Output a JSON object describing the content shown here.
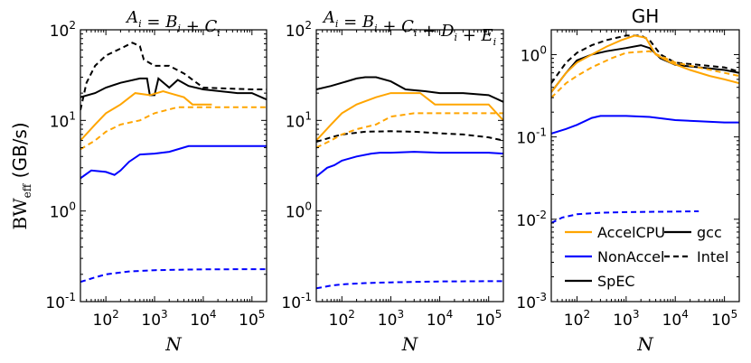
{
  "colors": {
    "accelcpu": "#FFA500",
    "nonaccel": "#0000FF",
    "spec": "#000000"
  },
  "figure": {
    "ylabel": "BW",
    "ylabel_sub": "eff",
    "ylabel_unit": " (GB/s)",
    "xlabel": "N"
  },
  "legend": {
    "items": [
      {
        "label": "AccelCPU",
        "color": "#FFA500",
        "dash": "solid"
      },
      {
        "label": "gcc",
        "color": "#000000",
        "dash": "solid"
      },
      {
        "label": "NonAccel",
        "color": "#0000FF",
        "dash": "solid"
      },
      {
        "label": "Intel",
        "color": "#000000",
        "dash": "dashed"
      },
      {
        "label": "SpEC",
        "color": "#000000",
        "dash": "solid"
      }
    ]
  },
  "chart_data": [
    {
      "type": "line",
      "title": "A_i = B_i + C_i",
      "title_parts": {
        "lhs": "A",
        "rhs": [
          "B",
          "C"
        ],
        "sub": "i"
      },
      "xscale": "log",
      "yscale": "log",
      "xlim": [
        30,
        200000
      ],
      "ylim": [
        0.1,
        100
      ],
      "xticks": [
        {
          "value": 100,
          "base": "10",
          "exp": "2"
        },
        {
          "value": 1000,
          "base": "10",
          "exp": "3"
        },
        {
          "value": 10000,
          "base": "10",
          "exp": "4"
        },
        {
          "value": 100000,
          "base": "10",
          "exp": "5"
        }
      ],
      "yticks": [
        {
          "value": 0.1,
          "base": "10",
          "exp": "-1"
        },
        {
          "value": 1,
          "base": "10",
          "exp": "0"
        },
        {
          "value": 10,
          "base": "10",
          "exp": "1"
        },
        {
          "value": 100,
          "base": "10",
          "exp": "2"
        }
      ],
      "xlabel": "N",
      "series": [
        {
          "name": "SpEC Intel",
          "color": "#000000",
          "dash": "dashed",
          "x": [
            30,
            40,
            60,
            100,
            200,
            350,
            500,
            600,
            1000,
            2000,
            4000,
            10000,
            100000,
            200000
          ],
          "y": [
            13,
            26,
            40,
            52,
            62,
            72,
            66,
            47,
            40,
            40,
            33,
            23,
            22,
            22
          ]
        },
        {
          "name": "SpEC gcc",
          "color": "#000000",
          "dash": "solid",
          "x": [
            30,
            60,
            100,
            200,
            500,
            700,
            800,
            1000,
            1200,
            2000,
            3000,
            5000,
            10000,
            50000,
            100000,
            200000
          ],
          "y": [
            18,
            20,
            23,
            26,
            29,
            29,
            19,
            19,
            29,
            23,
            28,
            24,
            22,
            20,
            20,
            17
          ]
        },
        {
          "name": "AccelCPU gcc",
          "color": "#FFA500",
          "dash": "solid",
          "x": [
            30,
            60,
            100,
            200,
            400,
            800,
            1500,
            2000,
            4000,
            6000,
            10000,
            15000
          ],
          "y": [
            6,
            9,
            12,
            15,
            20,
            19,
            21,
            20,
            18,
            15,
            15,
            15
          ]
        },
        {
          "name": "AccelCPU Intel",
          "color": "#FFA500",
          "dash": "dashed",
          "x": [
            30,
            60,
            100,
            200,
            500,
            1000,
            3000,
            10000,
            50000,
            100000,
            200000
          ],
          "y": [
            4.8,
            6,
            7.5,
            9,
            10,
            12,
            14,
            14,
            14,
            14,
            14
          ]
        },
        {
          "name": "NonAccel gcc",
          "color": "#0000FF",
          "dash": "solid",
          "x": [
            30,
            50,
            100,
            150,
            200,
            300,
            500,
            1000,
            2000,
            5000,
            10000,
            100000,
            200000
          ],
          "y": [
            2.3,
            2.8,
            2.7,
            2.5,
            2.8,
            3.5,
            4.2,
            4.3,
            4.5,
            5.2,
            5.2,
            5.2,
            5.2
          ]
        },
        {
          "name": "NonAccel Intel",
          "color": "#0000FF",
          "dash": "dashed",
          "x": [
            30,
            60,
            100,
            300,
            1000,
            3000,
            10000,
            100000,
            200000
          ],
          "y": [
            0.165,
            0.185,
            0.2,
            0.215,
            0.222,
            0.225,
            0.227,
            0.228,
            0.228
          ]
        }
      ]
    },
    {
      "type": "line",
      "title": "A_i = B_i + C_i + D_i + E_i",
      "title_parts": {
        "lhs": "A",
        "rhs": [
          "B",
          "C",
          "D",
          "E"
        ],
        "sub": "i"
      },
      "xscale": "log",
      "yscale": "log",
      "xlim": [
        30,
        200000
      ],
      "ylim": [
        0.1,
        100
      ],
      "xticks": [
        {
          "value": 100,
          "base": "10",
          "exp": "2"
        },
        {
          "value": 1000,
          "base": "10",
          "exp": "3"
        },
        {
          "value": 10000,
          "base": "10",
          "exp": "4"
        },
        {
          "value": 100000,
          "base": "10",
          "exp": "5"
        }
      ],
      "yticks": [
        {
          "value": 0.1,
          "base": "10",
          "exp": "-1"
        },
        {
          "value": 1,
          "base": "10",
          "exp": "0"
        },
        {
          "value": 10,
          "base": "10",
          "exp": "1"
        },
        {
          "value": 100,
          "base": "10",
          "exp": "2"
        }
      ],
      "xlabel": "N",
      "series": [
        {
          "name": "SpEC gcc",
          "color": "#000000",
          "dash": "solid",
          "x": [
            30,
            60,
            100,
            200,
            300,
            500,
            1000,
            2000,
            5000,
            10000,
            30000,
            100000,
            200000
          ],
          "y": [
            22,
            24,
            26,
            29,
            30,
            30,
            27,
            22,
            21,
            20,
            20,
            19,
            16
          ]
        },
        {
          "name": "SpEC Intel",
          "color": "#000000",
          "dash": "dashed",
          "x": [
            30,
            60,
            100,
            300,
            1000,
            3000,
            10000,
            30000,
            100000,
            200000
          ],
          "y": [
            5.8,
            6.5,
            7,
            7.5,
            7.6,
            7.5,
            7.2,
            7,
            6.5,
            6
          ]
        },
        {
          "name": "AccelCPU gcc",
          "color": "#FFA500",
          "dash": "solid",
          "x": [
            30,
            60,
            100,
            200,
            500,
            1000,
            2000,
            4000,
            8000,
            10000,
            30000,
            100000,
            200000
          ],
          "y": [
            6,
            9,
            12,
            15,
            18,
            20,
            20,
            20,
            15,
            15,
            15,
            15,
            10
          ]
        },
        {
          "name": "AccelCPU Intel",
          "color": "#FFA500",
          "dash": "dashed",
          "x": [
            30,
            60,
            100,
            200,
            500,
            1000,
            3000,
            10000,
            50000,
            100000,
            200000
          ],
          "y": [
            5,
            6,
            7,
            8,
            9,
            11,
            12,
            12,
            12,
            12,
            12
          ]
        },
        {
          "name": "NonAccel gcc",
          "color": "#0000FF",
          "dash": "solid",
          "x": [
            30,
            50,
            70,
            100,
            200,
            400,
            600,
            1000,
            3000,
            10000,
            100000,
            200000
          ],
          "y": [
            2.4,
            3.0,
            3.2,
            3.6,
            4.0,
            4.3,
            4.4,
            4.4,
            4.5,
            4.4,
            4.4,
            4.3
          ]
        },
        {
          "name": "NonAccel Intel",
          "color": "#0000FF",
          "dash": "dashed",
          "x": [
            30,
            60,
            100,
            300,
            1000,
            3000,
            10000,
            100000,
            200000
          ],
          "y": [
            0.14,
            0.15,
            0.155,
            0.16,
            0.163,
            0.165,
            0.167,
            0.168,
            0.168
          ]
        }
      ]
    },
    {
      "type": "line",
      "title": "GH",
      "xscale": "log",
      "yscale": "log",
      "xlim": [
        30,
        200000
      ],
      "ylim": [
        0.001,
        2
      ],
      "xticks": [
        {
          "value": 100,
          "base": "10",
          "exp": "2"
        },
        {
          "value": 1000,
          "base": "10",
          "exp": "3"
        },
        {
          "value": 10000,
          "base": "10",
          "exp": "4"
        },
        {
          "value": 100000,
          "base": "10",
          "exp": "5"
        }
      ],
      "yticks": [
        {
          "value": 0.001,
          "base": "10",
          "exp": "-3"
        },
        {
          "value": 0.01,
          "base": "10",
          "exp": "-2"
        },
        {
          "value": 0.1,
          "base": "10",
          "exp": "-1"
        },
        {
          "value": 1,
          "base": "10",
          "exp": "0"
        }
      ],
      "xlabel": "N",
      "series": [
        {
          "name": "SpEC Intel",
          "color": "#000000",
          "dash": "dashed",
          "x": [
            30,
            60,
            100,
            200,
            400,
            1000,
            2000,
            3000,
            5000,
            10000,
            100000,
            200000
          ],
          "y": [
            0.45,
            0.8,
            1.05,
            1.3,
            1.5,
            1.7,
            1.7,
            1.5,
            1.0,
            0.8,
            0.7,
            0.62
          ]
        },
        {
          "name": "SpEC gcc",
          "color": "#000000",
          "dash": "solid",
          "x": [
            30,
            60,
            100,
            200,
            400,
            1000,
            2000,
            3000,
            5000,
            10000,
            100000,
            200000
          ],
          "y": [
            0.35,
            0.6,
            0.85,
            1.0,
            1.1,
            1.2,
            1.3,
            1.2,
            0.9,
            0.75,
            0.65,
            0.6
          ]
        },
        {
          "name": "AccelCPU gcc",
          "color": "#FFA500",
          "dash": "solid",
          "x": [
            30,
            60,
            100,
            200,
            400,
            800,
            1500,
            2500,
            4000,
            8000,
            20000,
            50000,
            100000,
            200000
          ],
          "y": [
            0.35,
            0.6,
            0.8,
            1.0,
            1.25,
            1.5,
            1.7,
            1.6,
            1.0,
            0.8,
            0.65,
            0.55,
            0.5,
            0.45
          ]
        },
        {
          "name": "AccelCPU Intel",
          "color": "#FFA500",
          "dash": "dashed",
          "x": [
            30,
            60,
            100,
            200,
            500,
            1000,
            3000,
            10000,
            100000,
            200000
          ],
          "y": [
            0.3,
            0.45,
            0.55,
            0.7,
            0.9,
            1.05,
            1.1,
            0.8,
            0.6,
            0.55
          ]
        },
        {
          "name": "NonAccel gcc",
          "color": "#0000FF",
          "dash": "solid",
          "x": [
            30,
            60,
            100,
            200,
            300,
            1000,
            3000,
            10000,
            30000,
            100000,
            200000
          ],
          "y": [
            0.11,
            0.125,
            0.14,
            0.17,
            0.18,
            0.18,
            0.175,
            0.16,
            0.155,
            0.15,
            0.15
          ]
        },
        {
          "name": "NonAccel Intel",
          "color": "#0000FF",
          "dash": "dashed",
          "x": [
            30,
            50,
            100,
            300,
            1000,
            3000,
            10000,
            30000
          ],
          "y": [
            0.009,
            0.0105,
            0.0115,
            0.012,
            0.0122,
            0.0123,
            0.0124,
            0.0125
          ]
        }
      ]
    }
  ]
}
